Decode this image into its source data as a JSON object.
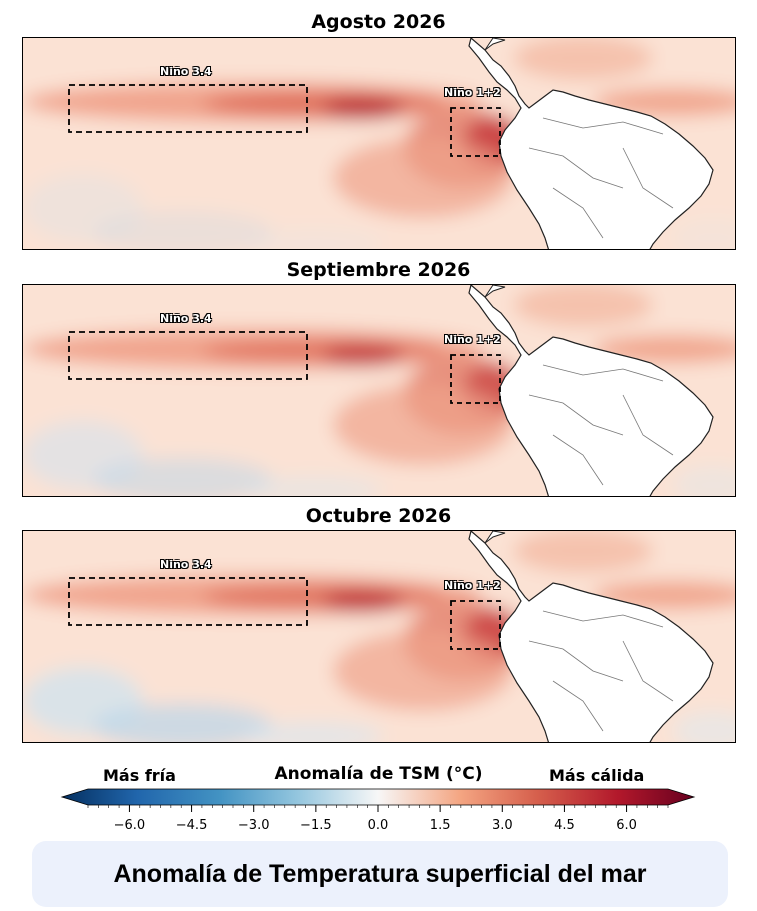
{
  "panels": [
    {
      "title": "Agosto 2026",
      "intensity": 1.0,
      "cool": 0.35
    },
    {
      "title": "Septiembre 2026",
      "intensity": 0.8,
      "cool": 0.7
    },
    {
      "title": "Octubre 2026",
      "intensity": 0.9,
      "cool": 1.0
    }
  ],
  "regions": {
    "nino34": "Niño 3.4",
    "nino12": "Niño 1+2"
  },
  "colorbar": {
    "title": "Anomalía de TSM (°C)",
    "cold_label": "Más fría",
    "warm_label": "Más cálida",
    "ticks": [
      "−6.0",
      "−4.5",
      "−3.0",
      "−1.5",
      "0.0",
      "1.5",
      "3.0",
      "4.5",
      "6.0"
    ],
    "tick_values": [
      -6.0,
      -4.5,
      -3.0,
      -1.5,
      0.0,
      1.5,
      3.0,
      4.5,
      6.0
    ],
    "range": [
      -7.0,
      7.0
    ],
    "colors": {
      "cold_end": "#053061",
      "mid": "#f7f7f7",
      "warm_end": "#67001f"
    }
  },
  "caption": "Anomalía de Temperatura superficial del mar"
}
